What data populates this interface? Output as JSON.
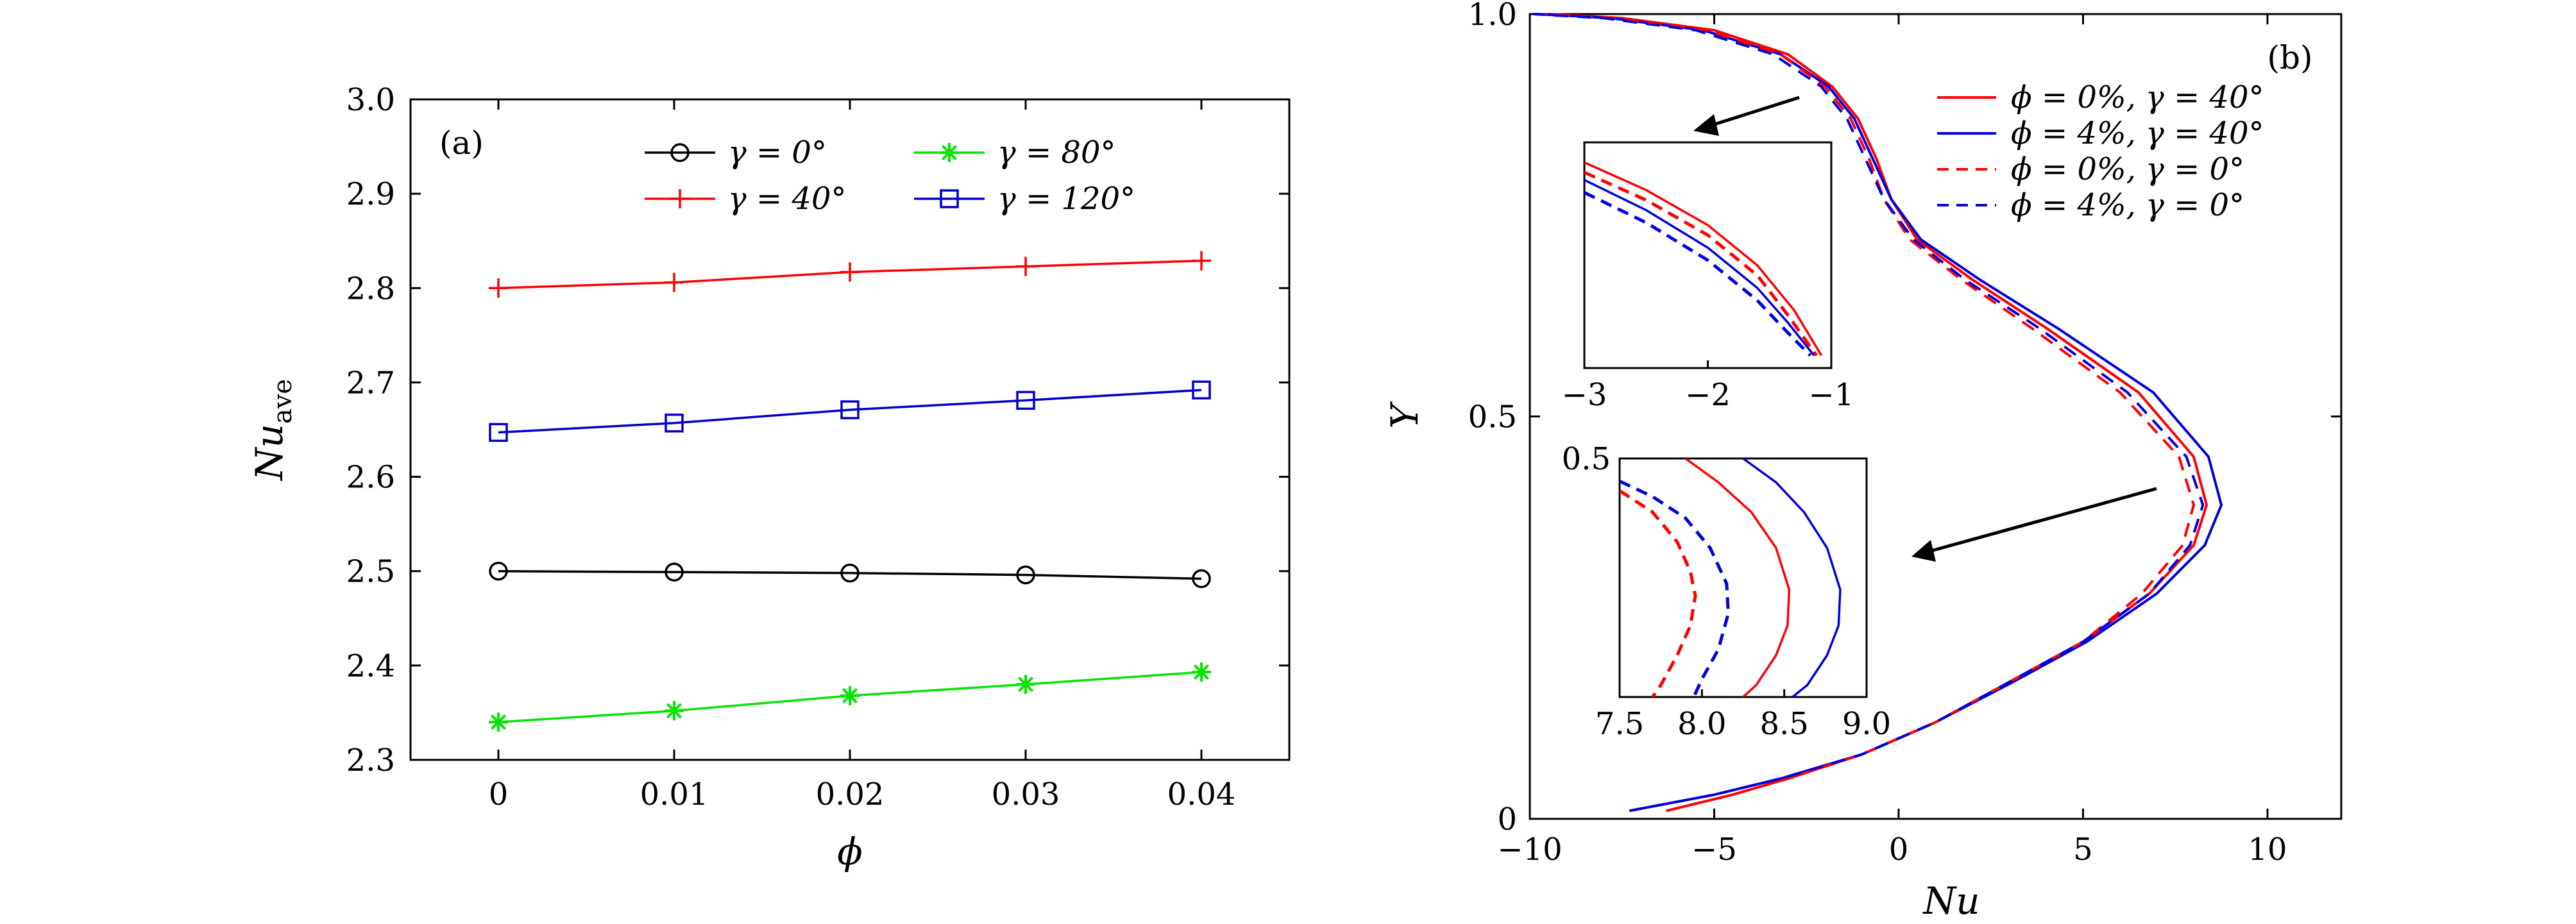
{
  "chart_data": [
    {
      "id": "a",
      "type": "line",
      "panel_label": "(a)",
      "xlabel": "ϕ",
      "ylabel": "Nu",
      "ylabel_sub": "ave",
      "xlim": [
        -0.005,
        0.045
      ],
      "ylim": [
        2.3,
        3.0
      ],
      "xticks": [
        0,
        0.01,
        0.02,
        0.03,
        0.04
      ],
      "xtick_labels": [
        "0",
        "0.01",
        "0.02",
        "0.03",
        "0.04"
      ],
      "yticks": [
        2.3,
        2.4,
        2.5,
        2.6,
        2.7,
        2.8,
        2.9,
        3.0
      ],
      "ytick_labels": [
        "2.3",
        "2.4",
        "2.5",
        "2.6",
        "2.7",
        "2.8",
        "2.9",
        "3.0"
      ],
      "legend_position": "top-right",
      "x": [
        0,
        0.01,
        0.02,
        0.03,
        0.04
      ],
      "series": [
        {
          "name": "γ = 0°",
          "color": "#000000",
          "marker": "circle",
          "values": [
            2.5,
            2.499,
            2.498,
            2.496,
            2.492
          ]
        },
        {
          "name": "γ = 40°",
          "color": "#ff0000",
          "marker": "plus",
          "values": [
            2.8,
            2.806,
            2.817,
            2.823,
            2.829
          ]
        },
        {
          "name": "γ = 80°",
          "color": "#00e600",
          "marker": "star",
          "values": [
            2.34,
            2.352,
            2.368,
            2.38,
            2.393
          ]
        },
        {
          "name": "γ = 120°",
          "color": "#0000cc",
          "marker": "square",
          "values": [
            2.647,
            2.657,
            2.671,
            2.681,
            2.692
          ]
        }
      ]
    },
    {
      "id": "b",
      "type": "line",
      "panel_label": "(b)",
      "xlabel": "Nu",
      "ylabel": "Y",
      "xlim": [
        -10,
        12
      ],
      "ylim": [
        0,
        1.0
      ],
      "xticks": [
        -10,
        -5,
        0,
        5,
        10
      ],
      "xtick_labels": [
        "−10",
        "−5",
        "0",
        "5",
        "10"
      ],
      "yticks": [
        0,
        0.5,
        1.0
      ],
      "ytick_labels": [
        "0",
        "0.5",
        "1.0"
      ],
      "legend_position": "top-right",
      "series": [
        {
          "name": "ϕ = 0%, γ = 40°",
          "color": "#ff0000",
          "dash": "solid",
          "points": [
            [
              -6.3,
              0.01
            ],
            [
              -4.5,
              0.03
            ],
            [
              -3.0,
              0.05
            ],
            [
              -1.0,
              0.08
            ],
            [
              1.0,
              0.12
            ],
            [
              3.0,
              0.17
            ],
            [
              5.0,
              0.22
            ],
            [
              6.8,
              0.28
            ],
            [
              8.0,
              0.34
            ],
            [
              8.35,
              0.39
            ],
            [
              8.0,
              0.45
            ],
            [
              6.5,
              0.53
            ],
            [
              4.0,
              0.61
            ],
            [
              2.0,
              0.67
            ],
            [
              0.5,
              0.72
            ],
            [
              -0.2,
              0.77
            ],
            [
              -0.6,
              0.82
            ],
            [
              -1.1,
              0.87
            ],
            [
              -1.8,
              0.91
            ],
            [
              -3.0,
              0.95
            ],
            [
              -5.0,
              0.98
            ],
            [
              -7.5,
              0.995
            ],
            [
              -9.5,
              1.0
            ]
          ]
        },
        {
          "name": "ϕ = 4%, γ = 40°",
          "color": "#0000dd",
          "dash": "solid",
          "points": [
            [
              -7.3,
              0.01
            ],
            [
              -5.0,
              0.03
            ],
            [
              -3.2,
              0.05
            ],
            [
              -1.0,
              0.08
            ],
            [
              1.0,
              0.12
            ],
            [
              3.1,
              0.17
            ],
            [
              5.1,
              0.22
            ],
            [
              7.0,
              0.28
            ],
            [
              8.3,
              0.34
            ],
            [
              8.75,
              0.39
            ],
            [
              8.4,
              0.45
            ],
            [
              6.9,
              0.53
            ],
            [
              4.3,
              0.61
            ],
            [
              2.2,
              0.67
            ],
            [
              0.6,
              0.72
            ],
            [
              -0.2,
              0.77
            ],
            [
              -0.7,
              0.82
            ],
            [
              -1.2,
              0.87
            ],
            [
              -1.9,
              0.91
            ],
            [
              -3.2,
              0.95
            ],
            [
              -5.3,
              0.98
            ],
            [
              -7.8,
              0.995
            ],
            [
              -9.8,
              1.0
            ]
          ]
        },
        {
          "name": "ϕ = 0%, γ = 0°",
          "color": "#ff0000",
          "dash": "dashed",
          "points": [
            [
              -6.3,
              0.01
            ],
            [
              -4.5,
              0.03
            ],
            [
              -3.0,
              0.05
            ],
            [
              -1.0,
              0.08
            ],
            [
              1.0,
              0.12
            ],
            [
              3.0,
              0.17
            ],
            [
              5.0,
              0.22
            ],
            [
              6.6,
              0.28
            ],
            [
              7.7,
              0.34
            ],
            [
              8.0,
              0.39
            ],
            [
              7.6,
              0.45
            ],
            [
              6.0,
              0.53
            ],
            [
              3.6,
              0.61
            ],
            [
              1.7,
              0.67
            ],
            [
              0.3,
              0.72
            ],
            [
              -0.4,
              0.77
            ],
            [
              -0.8,
              0.82
            ],
            [
              -1.3,
              0.87
            ],
            [
              -2.0,
              0.91
            ],
            [
              -3.2,
              0.95
            ],
            [
              -5.2,
              0.98
            ],
            [
              -7.7,
              0.995
            ],
            [
              -9.6,
              1.0
            ]
          ]
        },
        {
          "name": "ϕ = 4%, γ = 0°",
          "color": "#0000dd",
          "dash": "dashed",
          "points": [
            [
              -7.3,
              0.01
            ],
            [
              -5.0,
              0.03
            ],
            [
              -3.2,
              0.05
            ],
            [
              -1.0,
              0.08
            ],
            [
              1.0,
              0.12
            ],
            [
              3.0,
              0.17
            ],
            [
              5.0,
              0.22
            ],
            [
              6.8,
              0.28
            ],
            [
              7.9,
              0.34
            ],
            [
              8.25,
              0.39
            ],
            [
              7.8,
              0.45
            ],
            [
              6.2,
              0.53
            ],
            [
              3.8,
              0.61
            ],
            [
              1.8,
              0.67
            ],
            [
              0.4,
              0.72
            ],
            [
              -0.4,
              0.77
            ],
            [
              -0.9,
              0.82
            ],
            [
              -1.4,
              0.87
            ],
            [
              -2.1,
              0.91
            ],
            [
              -3.4,
              0.95
            ],
            [
              -5.5,
              0.98
            ],
            [
              -8.0,
              0.995
            ],
            [
              -9.9,
              1.0
            ]
          ]
        }
      ],
      "insets": [
        {
          "id": "inset-top",
          "xlim": [
            -3,
            -1
          ],
          "ylim": [
            0.88,
            0.97
          ],
          "xticks": [
            -3,
            -2,
            -1
          ],
          "xtick_labels": [
            "−3",
            "−2",
            "−1"
          ],
          "series": [
            {
              "color": "#ff0000",
              "dash": "solid",
              "points": [
                [
                  -3.0,
                  0.962
                ],
                [
                  -2.5,
                  0.951
                ],
                [
                  -2.0,
                  0.937
                ],
                [
                  -1.6,
                  0.921
                ],
                [
                  -1.3,
                  0.903
                ],
                [
                  -1.08,
                  0.885
                ]
              ]
            },
            {
              "color": "#ff0000",
              "dash": "dashed",
              "points": [
                [
                  -3.0,
                  0.958
                ],
                [
                  -2.5,
                  0.947
                ],
                [
                  -2.0,
                  0.933
                ],
                [
                  -1.6,
                  0.917
                ],
                [
                  -1.35,
                  0.901
                ],
                [
                  -1.12,
                  0.885
                ]
              ]
            },
            {
              "color": "#0000dd",
              "dash": "solid",
              "points": [
                [
                  -3.0,
                  0.955
                ],
                [
                  -2.5,
                  0.943
                ],
                [
                  -2.0,
                  0.928
                ],
                [
                  -1.6,
                  0.912
                ],
                [
                  -1.35,
                  0.898
                ],
                [
                  -1.14,
                  0.885
                ]
              ]
            },
            {
              "color": "#0000dd",
              "dash": "dashed",
              "points": [
                [
                  -3.0,
                  0.95
                ],
                [
                  -2.5,
                  0.938
                ],
                [
                  -2.0,
                  0.923
                ],
                [
                  -1.6,
                  0.907
                ],
                [
                  -1.37,
                  0.895
                ],
                [
                  -1.17,
                  0.885
                ]
              ]
            }
          ]
        },
        {
          "id": "inset-bottom",
          "xlim": [
            7.5,
            9.0
          ],
          "ylim": [
            0.3,
            0.5
          ],
          "ytick": 0.5,
          "ytick_label": "0.5",
          "xticks": [
            7.5,
            8.0,
            8.5,
            9.0
          ],
          "xtick_labels": [
            "7.5",
            "8.0",
            "8.5",
            "9.0"
          ],
          "series": [
            {
              "color": "#ff0000",
              "dash": "dashed",
              "points": [
                [
                  7.5,
                  0.473
                ],
                [
                  7.7,
                  0.455
                ],
                [
                  7.85,
                  0.43
                ],
                [
                  7.93,
                  0.405
                ],
                [
                  7.96,
                  0.385
                ],
                [
                  7.93,
                  0.36
                ],
                [
                  7.85,
                  0.335
                ],
                [
                  7.75,
                  0.31
                ],
                [
                  7.7,
                  0.3
                ]
              ]
            },
            {
              "color": "#0000dd",
              "dash": "dashed",
              "points": [
                [
                  7.5,
                  0.481
                ],
                [
                  7.7,
                  0.468
                ],
                [
                  7.9,
                  0.45
                ],
                [
                  8.05,
                  0.425
                ],
                [
                  8.15,
                  0.395
                ],
                [
                  8.16,
                  0.37
                ],
                [
                  8.1,
                  0.34
                ],
                [
                  8.0,
                  0.315
                ],
                [
                  7.95,
                  0.3
                ]
              ]
            },
            {
              "color": "#ff0000",
              "dash": "solid",
              "points": [
                [
                  7.9,
                  0.5
                ],
                [
                  8.1,
                  0.48
                ],
                [
                  8.3,
                  0.455
                ],
                [
                  8.45,
                  0.425
                ],
                [
                  8.53,
                  0.39
                ],
                [
                  8.52,
                  0.36
                ],
                [
                  8.45,
                  0.335
                ],
                [
                  8.33,
                  0.31
                ],
                [
                  8.25,
                  0.3
                ]
              ]
            },
            {
              "color": "#0000dd",
              "dash": "solid",
              "points": [
                [
                  8.25,
                  0.5
                ],
                [
                  8.45,
                  0.48
                ],
                [
                  8.62,
                  0.455
                ],
                [
                  8.76,
                  0.425
                ],
                [
                  8.84,
                  0.39
                ],
                [
                  8.83,
                  0.36
                ],
                [
                  8.76,
                  0.335
                ],
                [
                  8.64,
                  0.31
                ],
                [
                  8.55,
                  0.3
                ]
              ]
            }
          ]
        }
      ]
    }
  ]
}
